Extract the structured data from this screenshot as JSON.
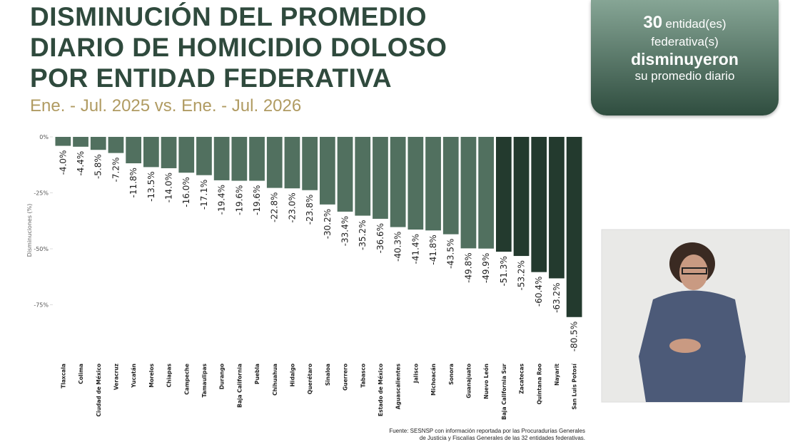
{
  "chart_data": {
    "type": "bar",
    "title": "DISMINUCIÓN DEL PROMEDIO DIARIO DE HOMICIDIO DOLOSO POR ENTIDAD FEDERATIVA",
    "subtitle": "Ene. - Jul. 2025 vs. Ene. - Jul. 2026",
    "y_label": "Disminuciones (%)",
    "categories": [
      "Tlaxcala",
      "Colima",
      "Ciudad de México",
      "Veracruz",
      "Yucatán",
      "Morelos",
      "Chiapas",
      "Campeche",
      "Tamaulipas",
      "Durango",
      "Baja California",
      "Puebla",
      "Chihuahua",
      "Hidalgo",
      "Querétaro",
      "Sinaloa",
      "Guerrero",
      "Tabasco",
      "Estado de México",
      "Aguascalientes",
      "Jalisco",
      "Michoacán",
      "Sonora",
      "Guanajuato",
      "Nuevo León",
      "Baja California Sur",
      "Zacatecas",
      "Quintana Roo",
      "Nayarit",
      "San Luis Potosí"
    ],
    "values": [
      -4.0,
      -4.4,
      -5.8,
      -7.2,
      -11.8,
      -13.5,
      -14.0,
      -16.0,
      -17.1,
      -19.4,
      -19.6,
      -19.6,
      -22.8,
      -23.0,
      -23.8,
      -30.2,
      -33.4,
      -35.2,
      -36.6,
      -40.3,
      -41.4,
      -41.8,
      -43.5,
      -49.8,
      -49.9,
      -51.3,
      -53.2,
      -60.4,
      -63.2,
      -80.5
    ],
    "value_labels": [
      "-4.0%",
      "-4.4%",
      "-5.8%",
      "-7.2%",
      "-11.8%",
      "-13.5%",
      "-14.0%",
      "-16.0%",
      "-17.1%",
      "-19.4%",
      "-19.6%",
      "-19.6%",
      "-22.8%",
      "-23.0%",
      "-23.8%",
      "-30.2%",
      "-33.4%",
      "-35.2%",
      "-36.6%",
      "-40.3%",
      "-41.4%",
      "-41.8%",
      "-43.5%",
      "-49.8%",
      "-49.9%",
      "-51.3%",
      "-53.2%",
      "-60.4%",
      "-63.2%",
      "-80.5%"
    ],
    "colors": [
      "#51705f",
      "#51705f",
      "#51705f",
      "#51705f",
      "#51705f",
      "#51705f",
      "#51705f",
      "#51705f",
      "#51705f",
      "#51705f",
      "#51705f",
      "#51705f",
      "#51705f",
      "#51705f",
      "#51705f",
      "#51705f",
      "#51705f",
      "#51705f",
      "#51705f",
      "#51705f",
      "#51705f",
      "#51705f",
      "#51705f",
      "#51705f",
      "#51705f",
      "#233a2e",
      "#233a2e",
      "#233a2e",
      "#233a2e",
      "#233a2e"
    ],
    "ylim": [
      -100,
      0
    ],
    "yticks": [
      {
        "value": 0,
        "label": "0%"
      },
      {
        "value": -25,
        "label": "-25%"
      },
      {
        "value": -50,
        "label": "-50%"
      },
      {
        "value": -75,
        "label": "-75%"
      }
    ],
    "source": [
      "Fuente: SESNSP con información reportada por las Procuradurías Generales",
      "de Justicia y Fiscalías Generales de las 32 entidades federativas."
    ]
  },
  "callout": {
    "count": 30,
    "line1": "entidad(es)",
    "line2": "federativa(s)",
    "line3": "disminuyeron",
    "line4": "su promedio diario"
  }
}
